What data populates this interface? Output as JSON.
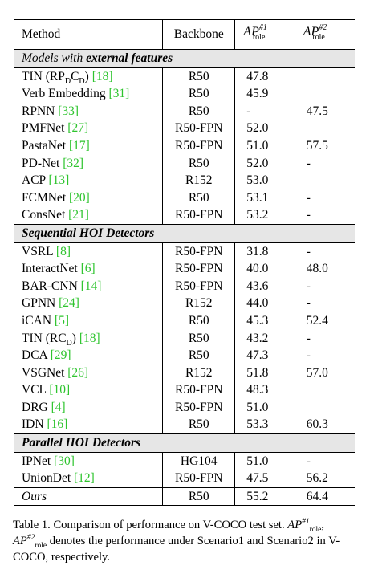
{
  "table": {
    "headers": {
      "method": "Method",
      "backbone": "Backbone",
      "ap1": "AP",
      "ap1_sup": "#1",
      "ap1_sub": "role",
      "ap2": "AP",
      "ap2_sup": "#2",
      "ap2_sub": "role"
    },
    "sections": [
      {
        "title_prefix": "Models with ",
        "title_bold": "external features",
        "rows": [
          {
            "method": "TIN (RP",
            "sub1": "D",
            "mid": "C",
            "sub2": "D",
            "suffix": ") ",
            "cite": "[18]",
            "backbone": "R50",
            "ap1": "47.8",
            "ap2": ""
          },
          {
            "method": "Verb Embedding ",
            "cite": "[31]",
            "backbone": "R50",
            "ap1": "45.9",
            "ap2": ""
          },
          {
            "method": "RPNN ",
            "cite": "[33]",
            "backbone": "R50",
            "ap1": "-",
            "ap2": "47.5"
          },
          {
            "method": "PMFNet ",
            "cite": "[27]",
            "backbone": "R50-FPN",
            "ap1": "52.0",
            "ap2": ""
          },
          {
            "method": "PastaNet ",
            "cite": "[17]",
            "backbone": "R50-FPN",
            "ap1": "51.0",
            "ap2": "57.5"
          },
          {
            "method": "PD-Net ",
            "cite": "[32]",
            "backbone": "R50",
            "ap1": "52.0",
            "ap2": "-"
          },
          {
            "method": "ACP ",
            "cite": "[13]",
            "backbone": "R152",
            "ap1": "53.0",
            "ap2": ""
          },
          {
            "method": "FCMNet ",
            "cite": "[20]",
            "backbone": "R50",
            "ap1": "53.1",
            "ap2": "-"
          },
          {
            "method": "ConsNet ",
            "cite": "[21]",
            "backbone": "R50-FPN",
            "ap1": "53.2",
            "ap2": "-"
          }
        ]
      },
      {
        "title_prefix": "",
        "title_bold": "Sequential HOI Detectors",
        "rows": [
          {
            "method": "VSRL ",
            "cite": "[8]",
            "backbone": "R50-FPN",
            "ap1": "31.8",
            "ap2": "-"
          },
          {
            "method": "InteractNet ",
            "cite": "[6]",
            "backbone": "R50-FPN",
            "ap1": "40.0",
            "ap2": "48.0"
          },
          {
            "method": "BAR-CNN ",
            "cite": "[14]",
            "backbone": "R50-FPN",
            "ap1": "43.6",
            "ap2": "-"
          },
          {
            "method": "GPNN ",
            "cite": "[24]",
            "backbone": "R152",
            "ap1": "44.0",
            "ap2": "-"
          },
          {
            "method": "iCAN ",
            "cite": "[5]",
            "backbone": "R50",
            "ap1": "45.3",
            "ap2": "52.4"
          },
          {
            "method": "TIN (RC",
            "sub1": "D",
            "suffix": ") ",
            "cite": "[18]",
            "backbone": "R50",
            "ap1": "43.2",
            "ap2": "-"
          },
          {
            "method": "DCA ",
            "cite": "[29]",
            "backbone": "R50",
            "ap1": "47.3",
            "ap2": "-"
          },
          {
            "method": "VSGNet ",
            "cite": "[26]",
            "backbone": "R152",
            "ap1": "51.8",
            "ap2": "57.0"
          },
          {
            "method": "VCL ",
            "cite": "[10]",
            "backbone": "R50-FPN",
            "ap1": "48.3",
            "ap2": ""
          },
          {
            "method": "DRG ",
            "cite": "[4]",
            "backbone": "R50-FPN",
            "ap1": "51.0",
            "ap2": ""
          },
          {
            "method": "IDN ",
            "cite": "[16]",
            "backbone": "R50",
            "ap1": "53.3",
            "ap2": "60.3"
          }
        ]
      },
      {
        "title_prefix": "",
        "title_bold": "Parallel HOI Detectors",
        "rows": [
          {
            "method": "IPNet ",
            "cite": "[30]",
            "backbone": "HG104",
            "ap1": "51.0",
            "ap2": "-"
          },
          {
            "method": "UnionDet ",
            "cite": "[12]",
            "backbone": "R50-FPN",
            "ap1": "47.5",
            "ap2": "56.2"
          }
        ]
      }
    ],
    "ours": {
      "method": "Ours",
      "backbone": "R50",
      "ap1": "55.2",
      "ap2": "64.4"
    }
  },
  "caption": {
    "part1": "Table 1. Comparison of performance on V-COCO test set. ",
    "ap": "AP",
    "sup1": "#1",
    "sub1": "role",
    "comma": ",",
    "sup2": "#2",
    "sub2": "role",
    "part2": " denotes the performance under Scenario1 and Scenario2 in V-COCO, respectively."
  },
  "colors": {
    "citation": "#2ec42e",
    "section_band": "#e6e6e6"
  }
}
